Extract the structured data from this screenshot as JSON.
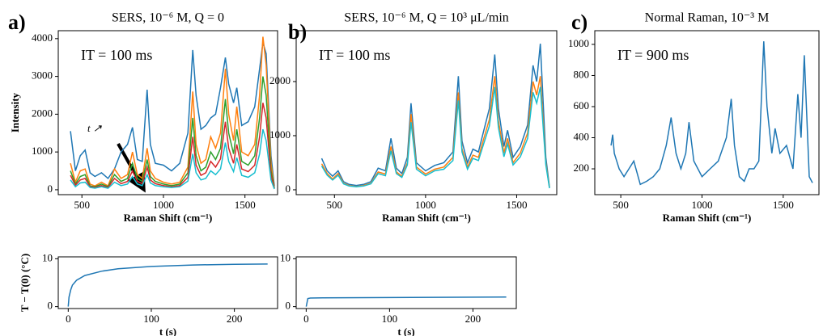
{
  "chart_data": [
    {
      "type": "line",
      "panel_label": "a)",
      "title": "SERS, 10⁻⁶ M, Q = 0",
      "annotation": "IT = 100 ms",
      "annotation_2": "t ↗",
      "x_label": "Raman Shift (cm⁻¹)",
      "y_label": "Intensity",
      "x": [
        430,
        460,
        490,
        520,
        550,
        580,
        620,
        660,
        700,
        740,
        780,
        810,
        840,
        870,
        900,
        920,
        950,
        1000,
        1050,
        1100,
        1150,
        1180,
        1200,
        1230,
        1260,
        1290,
        1320,
        1350,
        1380,
        1400,
        1430,
        1450,
        1480,
        1520,
        1560,
        1590,
        1610,
        1630,
        1660,
        1680
      ],
      "series": [
        {
          "color": "#1f77b4",
          "values": [
            1550,
            500,
            900,
            1050,
            450,
            350,
            450,
            300,
            550,
            1000,
            1200,
            1650,
            800,
            750,
            2650,
            1200,
            700,
            650,
            500,
            700,
            1500,
            3700,
            2500,
            1600,
            1700,
            1900,
            2000,
            2700,
            3500,
            2800,
            2300,
            2700,
            1700,
            1800,
            2200,
            3200,
            3900,
            3600,
            900,
            100
          ]
        },
        {
          "color": "#ff7f0e",
          "values": [
            700,
            200,
            500,
            550,
            150,
            100,
            200,
            100,
            550,
            300,
            400,
            1000,
            400,
            300,
            1100,
            500,
            300,
            200,
            150,
            200,
            600,
            2600,
            1200,
            700,
            800,
            1400,
            1100,
            1500,
            3200,
            2000,
            1300,
            2200,
            1000,
            900,
            1200,
            2500,
            4050,
            3300,
            700,
            50
          ]
        },
        {
          "color": "#2ca02c",
          "values": [
            500,
            150,
            350,
            400,
            100,
            80,
            150,
            80,
            400,
            220,
            300,
            700,
            300,
            220,
            800,
            350,
            220,
            150,
            110,
            150,
            450,
            1900,
            900,
            500,
            600,
            1000,
            800,
            1100,
            2400,
            1500,
            950,
            1600,
            750,
            650,
            900,
            1900,
            3000,
            2500,
            500,
            40
          ]
        },
        {
          "color": "#d62728",
          "values": [
            380,
            120,
            260,
            300,
            80,
            60,
            110,
            60,
            300,
            160,
            220,
            500,
            220,
            160,
            600,
            260,
            160,
            110,
            80,
            110,
            330,
            1400,
            650,
            380,
            450,
            750,
            600,
            820,
            1800,
            1100,
            700,
            1200,
            550,
            480,
            650,
            1400,
            2300,
            1900,
            380,
            30
          ]
        },
        {
          "color": "#17becf",
          "values": [
            260,
            80,
            180,
            200,
            60,
            40,
            80,
            40,
            200,
            110,
            150,
            350,
            150,
            110,
            400,
            180,
            110,
            80,
            60,
            80,
            230,
            950,
            450,
            260,
            300,
            500,
            400,
            550,
            1250,
            750,
            480,
            850,
            380,
            330,
            450,
            950,
            1600,
            1300,
            260,
            20
          ]
        }
      ],
      "xlim": [
        355,
        1700
      ],
      "ylim": [
        -130,
        4210
      ],
      "xticks": [
        500,
        1000,
        1500
      ],
      "yticks": [
        0,
        1000,
        2000,
        3000,
        4000
      ]
    },
    {
      "type": "line",
      "panel_label": "b)",
      "title": "SERS, 10⁻⁶ M, Q = 10³ μL/min",
      "annotation": "IT = 100 ms",
      "x_label": "Raman Shift (cm⁻¹)",
      "x": [
        430,
        460,
        490,
        520,
        550,
        580,
        620,
        660,
        700,
        740,
        780,
        810,
        840,
        870,
        900,
        920,
        950,
        1000,
        1050,
        1100,
        1150,
        1180,
        1200,
        1230,
        1260,
        1290,
        1320,
        1350,
        1380,
        1400,
        1430,
        1450,
        1480,
        1520,
        1560,
        1590,
        1610,
        1630,
        1660,
        1680
      ],
      "series": [
        {
          "color": "#1f77b4",
          "values": [
            580,
            350,
            250,
            350,
            150,
            100,
            80,
            100,
            150,
            400,
            350,
            950,
            400,
            300,
            600,
            1600,
            500,
            350,
            450,
            500,
            700,
            2100,
            900,
            500,
            750,
            700,
            1100,
            1500,
            2500,
            1500,
            800,
            1100,
            600,
            800,
            1200,
            2300,
            2000,
            2700,
            600,
            50
          ]
        },
        {
          "color": "#ff7f0e",
          "values": [
            480,
            300,
            200,
            300,
            120,
            80,
            60,
            80,
            120,
            330,
            290,
            800,
            330,
            250,
            500,
            1400,
            420,
            290,
            380,
            420,
            600,
            1800,
            760,
            420,
            640,
            600,
            950,
            1300,
            2100,
            1280,
            680,
            950,
            500,
            680,
            1050,
            2000,
            1750,
            2100,
            500,
            40
          ]
        },
        {
          "color": "#17becf",
          "values": [
            440,
            270,
            180,
            270,
            110,
            70,
            55,
            70,
            110,
            300,
            260,
            720,
            300,
            230,
            460,
            1250,
            380,
            260,
            350,
            380,
            540,
            1650,
            700,
            380,
            580,
            540,
            860,
            1180,
            1900,
            1150,
            610,
            850,
            460,
            610,
            950,
            1800,
            1600,
            1900,
            460,
            30
          ]
        }
      ],
      "xlim": [
        290,
        1720
      ],
      "ylim": [
        -90,
        2940
      ],
      "xticks": [
        500,
        1000,
        1500
      ],
      "yticks": [
        0,
        1000,
        2000
      ]
    },
    {
      "type": "line",
      "panel_label": "c)",
      "title": "Normal Raman, 10⁻³ M",
      "annotation": "IT = 900 ms",
      "x_label": "Raman Shift (cm⁻¹)",
      "x": [
        440,
        450,
        460,
        490,
        520,
        550,
        580,
        620,
        660,
        700,
        740,
        780,
        810,
        840,
        870,
        900,
        920,
        950,
        1000,
        1050,
        1100,
        1150,
        1180,
        1200,
        1230,
        1260,
        1290,
        1320,
        1350,
        1380,
        1400,
        1430,
        1450,
        1480,
        1520,
        1560,
        1590,
        1610,
        1630,
        1660,
        1680
      ],
      "series": [
        {
          "color": "#1f77b4",
          "values": [
            350,
            420,
            300,
            200,
            150,
            200,
            250,
            100,
            120,
            150,
            200,
            350,
            530,
            300,
            200,
            300,
            500,
            250,
            150,
            200,
            250,
            400,
            650,
            350,
            150,
            120,
            200,
            200,
            250,
            1020,
            600,
            300,
            460,
            300,
            350,
            200,
            680,
            400,
            930,
            150,
            110
          ]
        }
      ],
      "xlim": [
        340,
        1720
      ],
      "ylim": [
        34,
        1088
      ],
      "xticks": [
        500,
        1000,
        1500
      ],
      "yticks": [
        200,
        400,
        600,
        800,
        1000
      ]
    },
    {
      "type": "line",
      "x_label": "t (s)",
      "y_label": "T − T(0) (°C)",
      "x": [
        0,
        1,
        3,
        5,
        10,
        20,
        40,
        60,
        100,
        150,
        200,
        240
      ],
      "series": [
        {
          "color": "#1f77b4",
          "values": [
            0,
            2,
            3.5,
            4.5,
            5.5,
            6.5,
            7.4,
            7.9,
            8.4,
            8.7,
            8.85,
            8.9
          ]
        }
      ],
      "xlim": [
        -12,
        252
      ],
      "ylim": [
        -0.4,
        10.4
      ],
      "xticks": [
        0,
        100,
        200
      ],
      "yticks": [
        0,
        10
      ]
    },
    {
      "type": "line",
      "x_label": "t (s)",
      "x": [
        0,
        2,
        5,
        20,
        100,
        240
      ],
      "series": [
        {
          "color": "#1f77b4",
          "values": [
            0,
            1.7,
            1.8,
            1.85,
            1.9,
            2.0
          ]
        }
      ],
      "xlim": [
        -12,
        252
      ],
      "ylim": [
        -0.4,
        10.4
      ],
      "xticks": [
        0,
        100,
        200
      ],
      "yticks": [
        0,
        10
      ]
    }
  ]
}
